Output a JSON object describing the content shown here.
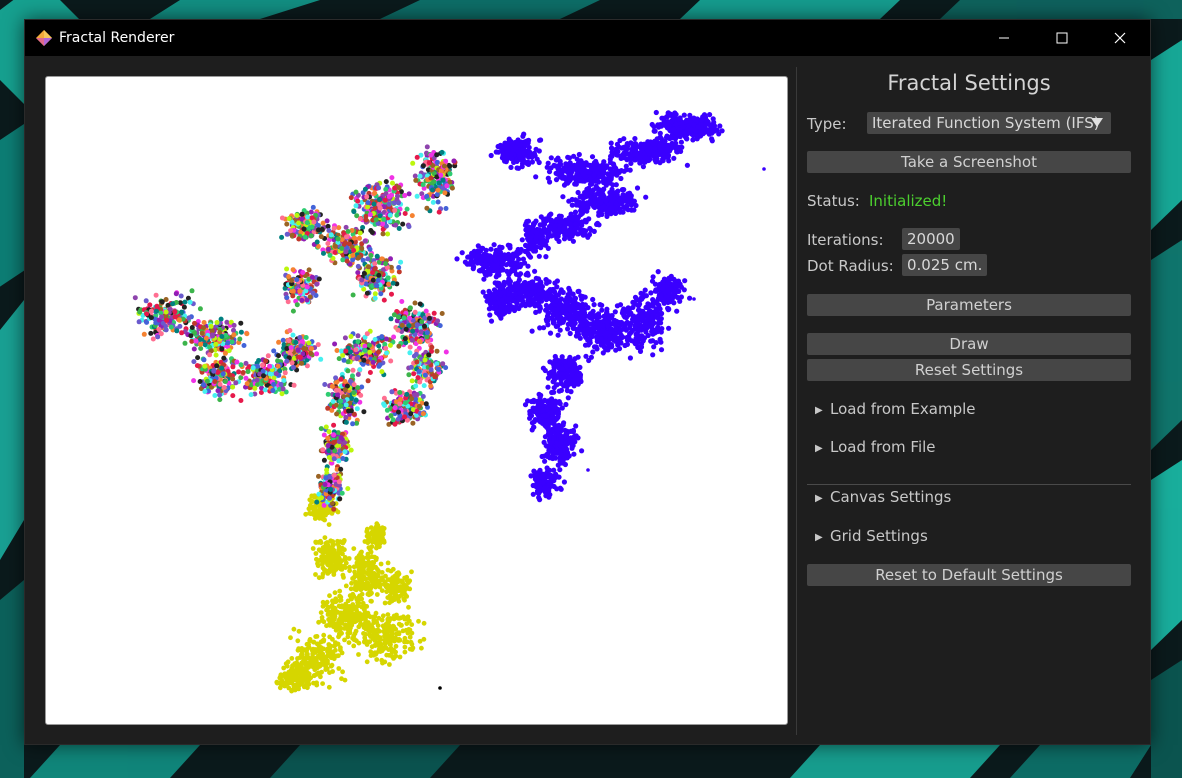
{
  "window": {
    "title": "Fractal Renderer",
    "controls": {
      "minimize": "minimize",
      "maximize": "maximize",
      "close": "close"
    }
  },
  "panel": {
    "title": "Fractal Settings",
    "type_label": "Type:",
    "type_value": "Iterated Function System (IFS)",
    "screenshot_button": "Take a Screenshot",
    "status_label": "Status:",
    "status_value": "Initialized!",
    "iterations_label": "Iterations:",
    "iterations_value": "20000",
    "dot_radius_label": "Dot Radius:",
    "dot_radius_value": "0.025 cm.",
    "parameters_button": "Parameters",
    "draw_button": "Draw",
    "reset_settings_button": "Reset Settings",
    "load_example": "Load from Example",
    "load_file": "Load from File",
    "canvas_settings": "Canvas Settings",
    "grid_settings": "Grid Settings",
    "reset_default_button": "Reset to Default Settings"
  },
  "colors": {
    "status_ok": "#4ccf2f",
    "blue_branch": "#3a00ff",
    "yellow_branch": "#d6d600",
    "window_bg": "#1e1e1e",
    "titlebar_bg": "#000000",
    "button_bg": "#464646"
  },
  "icons": {
    "app": "fractal-diamond-icon",
    "minimize": "minimize-icon",
    "maximize": "maximize-icon",
    "close": "close-icon",
    "dropdown": "triangle-down-icon",
    "tree_collapsed": "triangle-right-icon"
  }
}
